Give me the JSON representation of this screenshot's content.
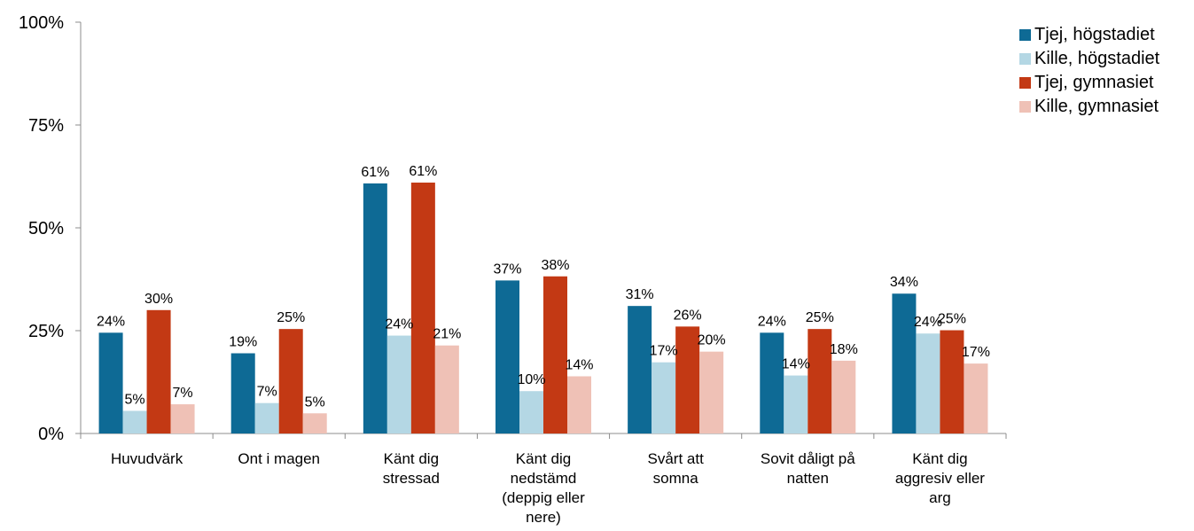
{
  "chart_data": {
    "type": "bar",
    "title": "",
    "xlabel": "",
    "ylabel": "",
    "ylim": [
      0,
      100
    ],
    "yticks": [
      "0%",
      "25%",
      "50%",
      "75%",
      "100%"
    ],
    "grid": false,
    "legend_position": "top-right",
    "categories": [
      [
        "Huvudvärk"
      ],
      [
        "Ont i magen"
      ],
      [
        "Känt dig",
        "stressad"
      ],
      [
        "Känt dig",
        "nedstämd",
        "(deppig eller",
        "nere)"
      ],
      [
        "Svårt att",
        "somna"
      ],
      [
        "Sovit dåligt på",
        "natten"
      ],
      [
        "Känt dig",
        "aggresiv eller",
        "arg"
      ]
    ],
    "series": [
      {
        "name": "Tjej, högstadiet",
        "color": "#0e6a95",
        "values": [
          24.5,
          19.5,
          60.8,
          37.2,
          31.0,
          24.5,
          34.0
        ],
        "labels": [
          "24%",
          "19%",
          "61%",
          "37%",
          "31%",
          "24%",
          "34%"
        ]
      },
      {
        "name": "Kille, högstadiet",
        "color": "#b4d7e4",
        "values": [
          5.5,
          7.4,
          23.8,
          10.3,
          17.3,
          14.1,
          24.3
        ],
        "labels": [
          "5%",
          "7%",
          "24%",
          "10%",
          "17%",
          "14%",
          "24%"
        ]
      },
      {
        "name": "Tjej, gymnasiet",
        "color": "#c33914",
        "values": [
          30.0,
          25.4,
          61.0,
          38.2,
          26.0,
          25.4,
          25.1
        ],
        "labels": [
          "30%",
          "25%",
          "61%",
          "38%",
          "26%",
          "25%",
          "25%"
        ]
      },
      {
        "name": "Kille, gymnasiet",
        "color": "#efc1b6",
        "values": [
          7.1,
          4.9,
          21.4,
          13.9,
          19.9,
          17.7,
          17.0
        ],
        "labels": [
          "7%",
          "5%",
          "21%",
          "14%",
          "20%",
          "18%",
          "17%"
        ]
      }
    ]
  }
}
